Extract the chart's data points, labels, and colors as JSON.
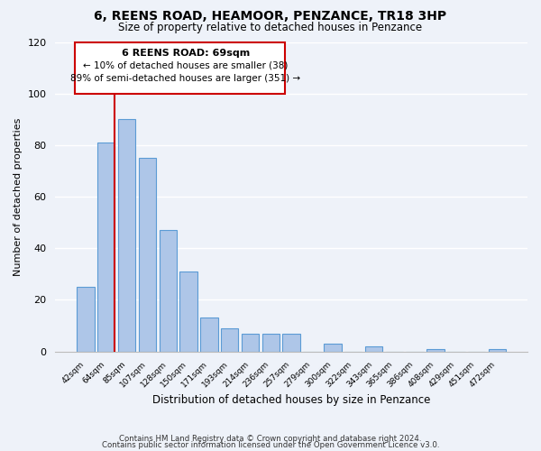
{
  "title": "6, REENS ROAD, HEAMOOR, PENZANCE, TR18 3HP",
  "subtitle": "Size of property relative to detached houses in Penzance",
  "xlabel": "Distribution of detached houses by size in Penzance",
  "ylabel": "Number of detached properties",
  "bar_labels": [
    "42sqm",
    "64sqm",
    "85sqm",
    "107sqm",
    "128sqm",
    "150sqm",
    "171sqm",
    "193sqm",
    "214sqm",
    "236sqm",
    "257sqm",
    "279sqm",
    "300sqm",
    "322sqm",
    "343sqm",
    "365sqm",
    "386sqm",
    "408sqm",
    "429sqm",
    "451sqm",
    "472sqm"
  ],
  "bar_values": [
    25,
    81,
    90,
    75,
    47,
    31,
    13,
    9,
    7,
    7,
    7,
    0,
    3,
    0,
    2,
    0,
    0,
    1,
    0,
    0,
    1
  ],
  "bar_color": "#aec6e8",
  "bar_edge_color": "#5b9bd5",
  "property_line_label": "6 REENS ROAD: 69sqm",
  "annotation_line1": "← 10% of detached houses are smaller (38)",
  "annotation_line2": "89% of semi-detached houses are larger (351) →",
  "annotation_box_color": "#ffffff",
  "annotation_box_edge_color": "#cc0000",
  "property_line_color": "#cc0000",
  "ylim": [
    0,
    120
  ],
  "yticks": [
    0,
    20,
    40,
    60,
    80,
    100,
    120
  ],
  "footer1": "Contains HM Land Registry data © Crown copyright and database right 2024.",
  "footer2": "Contains public sector information licensed under the Open Government Licence v3.0.",
  "bg_color": "#eef2f9",
  "plot_bg_color": "#eef2f9",
  "grid_color": "#ffffff"
}
